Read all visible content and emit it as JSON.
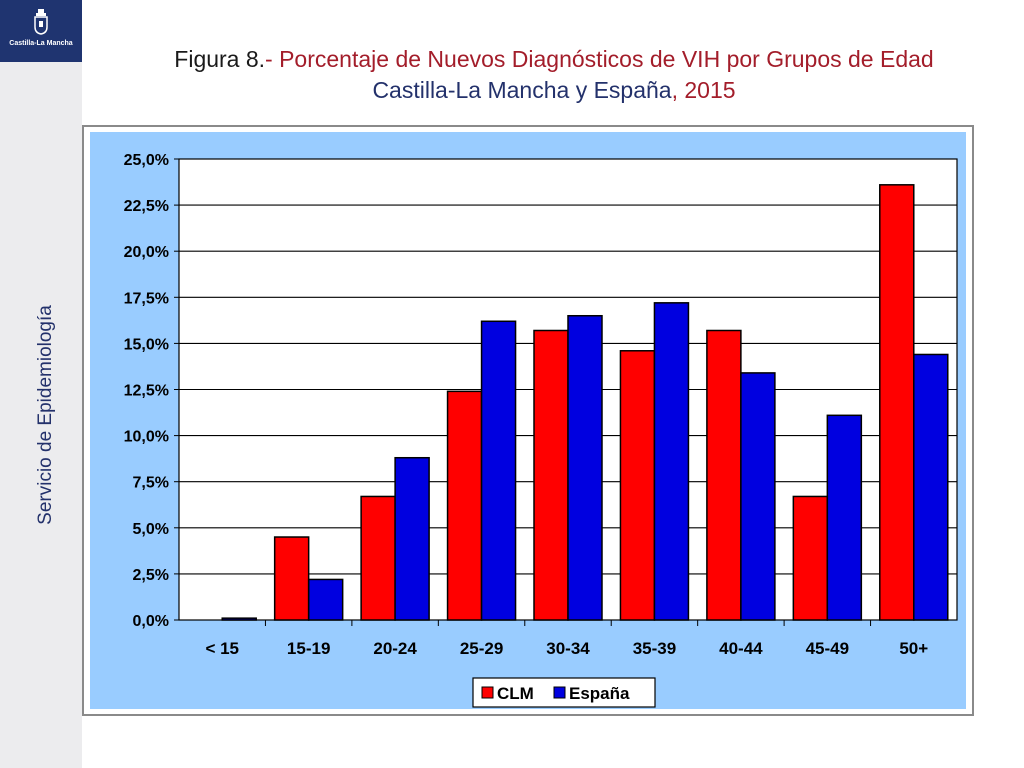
{
  "logo": {
    "text": "Castilla-La Mancha"
  },
  "sidebar": {
    "vertical_text": "Servicio de Epidemiología"
  },
  "title": {
    "line1_prefix": "Figura 8.",
    "line1_rest": "- Porcentaje de Nuevos Diagnósticos de VIH por Grupos de Edad",
    "line2_region": "Castilla-La Mancha y España",
    "line2_year": ", 2015"
  },
  "colors": {
    "clm": "#ff0000",
    "espana": "#0000e0",
    "plot_bg": "#ffffff",
    "chart_bg": "#99ccff"
  },
  "chart_data": {
    "type": "bar",
    "categories": [
      "< 15",
      "15-19",
      "20-24",
      "25-29",
      "30-34",
      "35-39",
      "40-44",
      "45-49",
      "50+"
    ],
    "series": [
      {
        "name": "CLM",
        "values": [
          0.0,
          4.5,
          6.7,
          12.4,
          15.7,
          14.6,
          15.7,
          6.7,
          23.6
        ]
      },
      {
        "name": "España",
        "values": [
          0.1,
          2.2,
          8.8,
          16.2,
          16.5,
          17.2,
          13.4,
          11.1,
          14.4
        ]
      }
    ],
    "ylim": [
      0,
      25
    ],
    "yticks": [
      "0,0%",
      "2,5%",
      "5,0%",
      "7,5%",
      "10,0%",
      "12,5%",
      "15,0%",
      "17,5%",
      "20,0%",
      "22,5%",
      "25,0%"
    ],
    "grid": true,
    "legend_position": "bottom-center"
  }
}
